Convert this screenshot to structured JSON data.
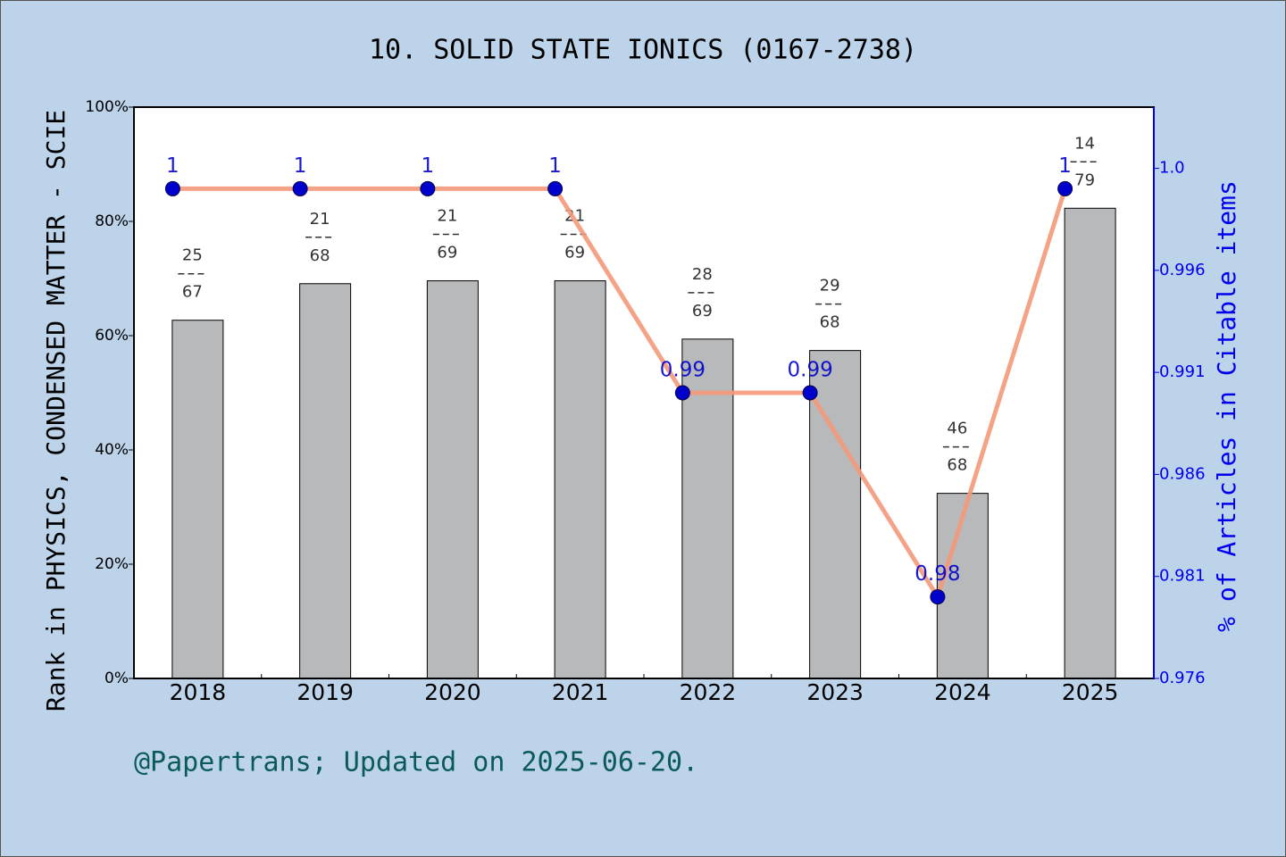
{
  "chart_data": {
    "type": "bar-line",
    "title": "10. SOLID STATE IONICS (0167-2738)",
    "ylabel": "Rank in PHYSICS, CONDENSED MATTER - SCIE",
    "y2label": "% of Articles in Citable items",
    "footer": "@Papertrans; Updated on 2025-06-20.",
    "categories": [
      "2018",
      "2019",
      "2020",
      "2021",
      "2022",
      "2023",
      "2024",
      "2025"
    ],
    "series": [
      {
        "color": "#b8b9bb",
        "values": [
          62.7,
          69.1,
          69.6,
          69.6,
          59.4,
          57.4,
          32.4,
          82.3
        ]
      },
      {
        "color": "#f4997a",
        "marker_color": "#0000cc",
        "axis": "y2",
        "values": [
          1,
          1,
          1,
          1,
          0.99,
          0.99,
          0.98,
          1
        ]
      }
    ],
    "ranks": [
      25,
      21,
      21,
      21,
      28,
      29,
      46,
      14
    ],
    "category_totals": [
      67,
      68,
      69,
      69,
      69,
      68,
      68,
      79
    ],
    "ylim": [
      0,
      100
    ],
    "yticks": [
      {
        "value": 0,
        "label": "0%"
      },
      {
        "value": 20,
        "label": "20%"
      },
      {
        "value": 40,
        "label": "40%"
      },
      {
        "value": 60,
        "label": "60%"
      },
      {
        "value": 80,
        "label": "80%"
      },
      {
        "value": 100,
        "label": "100%"
      }
    ],
    "y2lim": [
      0.976,
      1.004
    ],
    "y2ticks": [
      0.976,
      0.981,
      0.986,
      0.991,
      0.996,
      {
        "value": 1.001,
        "label": "1.0"
      }
    ]
  }
}
